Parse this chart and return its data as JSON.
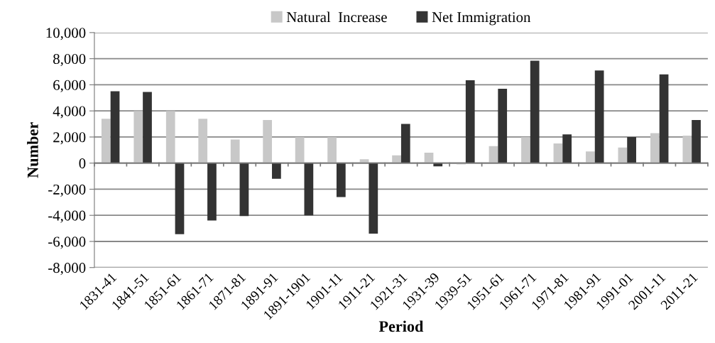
{
  "chart_data": {
    "type": "bar",
    "xlabel": "Period",
    "ylabel": "Number",
    "categories": [
      "1831-41",
      "1841-51",
      "1851-61",
      "1861-71",
      "1871-81",
      "1891-91",
      "1891-1901",
      "1901-11",
      "1911-21",
      "1921-31",
      "1931-39",
      "1939-51",
      "1951-61",
      "1961-71",
      "1971-81",
      "1981-91",
      "1991-01",
      "2001-11",
      "2011-21"
    ],
    "series": [
      {
        "name": "Natural  Increase",
        "color": "#c8c8c8",
        "values": [
          3400,
          4000,
          4000,
          3400,
          1800,
          3300,
          2000,
          2000,
          300,
          600,
          800,
          -100,
          1300,
          2000,
          1500,
          900,
          1200,
          2300,
          2100
        ]
      },
      {
        "name": "Net Immigration",
        "color": "#333333",
        "values": [
          5500,
          5450,
          -5450,
          -4400,
          -4050,
          -1200,
          -4000,
          -2600,
          -5400,
          3000,
          -250,
          6350,
          5700,
          7850,
          2200,
          7100,
          2000,
          6800,
          3300
        ]
      }
    ],
    "ylim": [
      -8000,
      10000
    ],
    "yticks": [
      {
        "value": -8000,
        "label": "-8,000"
      },
      {
        "value": -6000,
        "label": "-6,000"
      },
      {
        "value": -4000,
        "label": "-4,000"
      },
      {
        "value": -2000,
        "label": "-2,000"
      },
      {
        "value": 0,
        "label": "0"
      },
      {
        "value": 2000,
        "label": "2,000"
      },
      {
        "value": 4000,
        "label": "4,000"
      },
      {
        "value": 6000,
        "label": "6,000"
      },
      {
        "value": 8000,
        "label": "8,000"
      },
      {
        "value": 10000,
        "label": "10,000"
      }
    ],
    "grid": "y",
    "legend": "top"
  }
}
